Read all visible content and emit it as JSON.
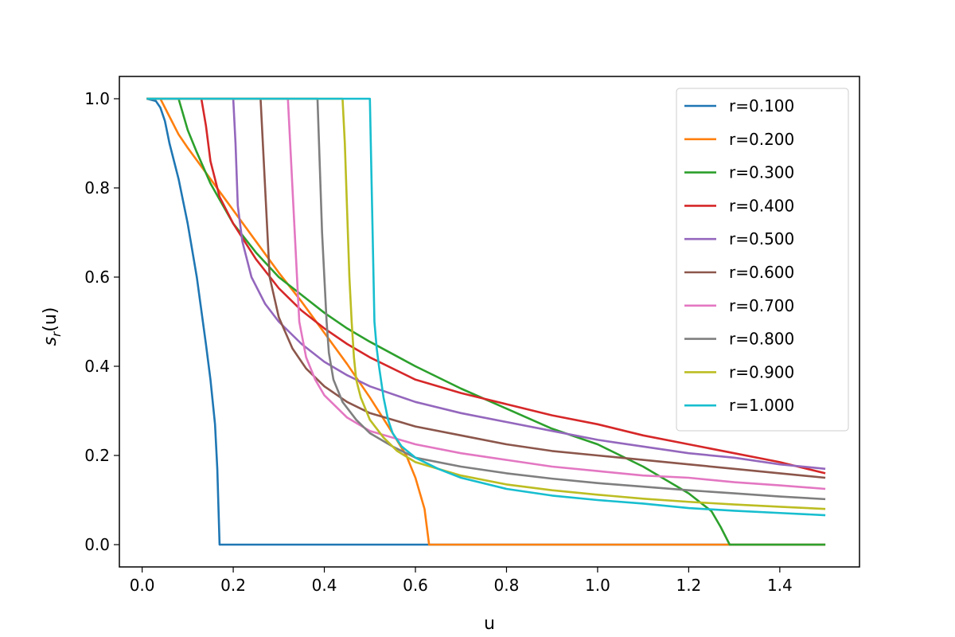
{
  "chart_data": {
    "type": "line",
    "xlabel": "u",
    "ylabel_base": "s",
    "ylabel_sub": "r",
    "ylabel_arg": "(u)",
    "xlim": [
      -0.05,
      1.575
    ],
    "ylim": [
      -0.05,
      1.05
    ],
    "xticks": [
      0.0,
      0.2,
      0.4,
      0.6,
      0.8,
      1.0,
      1.2,
      1.4
    ],
    "xtick_labels": [
      "0.0",
      "0.2",
      "0.4",
      "0.6",
      "0.8",
      "1.0",
      "1.2",
      "1.4"
    ],
    "yticks": [
      0.0,
      0.2,
      0.4,
      0.6,
      0.8,
      1.0
    ],
    "ytick_labels": [
      "0.0",
      "0.2",
      "0.4",
      "0.6",
      "0.8",
      "1.0"
    ],
    "grid": false,
    "legend_position": "top-right",
    "series": [
      {
        "name": "r=0.100",
        "color": "#1f77b4",
        "points": [
          [
            0.01,
            1.0
          ],
          [
            0.03,
            0.995
          ],
          [
            0.04,
            0.98
          ],
          [
            0.05,
            0.95
          ],
          [
            0.06,
            0.9
          ],
          [
            0.08,
            0.82
          ],
          [
            0.1,
            0.72
          ],
          [
            0.12,
            0.6
          ],
          [
            0.14,
            0.45
          ],
          [
            0.15,
            0.37
          ],
          [
            0.16,
            0.27
          ],
          [
            0.165,
            0.17
          ],
          [
            0.17,
            0.0
          ],
          [
            1.5,
            0.0
          ]
        ]
      },
      {
        "name": "r=0.200",
        "color": "#ff7f0e",
        "points": [
          [
            0.01,
            1.0
          ],
          [
            0.04,
            1.0
          ],
          [
            0.06,
            0.96
          ],
          [
            0.08,
            0.92
          ],
          [
            0.1,
            0.89
          ],
          [
            0.15,
            0.82
          ],
          [
            0.2,
            0.75
          ],
          [
            0.25,
            0.68
          ],
          [
            0.3,
            0.61
          ],
          [
            0.35,
            0.545
          ],
          [
            0.4,
            0.475
          ],
          [
            0.45,
            0.405
          ],
          [
            0.5,
            0.33
          ],
          [
            0.55,
            0.25
          ],
          [
            0.58,
            0.2
          ],
          [
            0.6,
            0.15
          ],
          [
            0.62,
            0.08
          ],
          [
            0.63,
            0.0
          ],
          [
            1.5,
            0.0
          ]
        ]
      },
      {
        "name": "r=0.300",
        "color": "#2ca02c",
        "points": [
          [
            0.01,
            1.0
          ],
          [
            0.08,
            1.0
          ],
          [
            0.1,
            0.93
          ],
          [
            0.12,
            0.88
          ],
          [
            0.15,
            0.81
          ],
          [
            0.2,
            0.72
          ],
          [
            0.25,
            0.655
          ],
          [
            0.3,
            0.6
          ],
          [
            0.35,
            0.56
          ],
          [
            0.4,
            0.52
          ],
          [
            0.45,
            0.485
          ],
          [
            0.5,
            0.455
          ],
          [
            0.6,
            0.4
          ],
          [
            0.7,
            0.35
          ],
          [
            0.8,
            0.305
          ],
          [
            0.9,
            0.26
          ],
          [
            1.0,
            0.225
          ],
          [
            1.05,
            0.2
          ],
          [
            1.1,
            0.175
          ],
          [
            1.15,
            0.145
          ],
          [
            1.2,
            0.115
          ],
          [
            1.25,
            0.075
          ],
          [
            1.27,
            0.04
          ],
          [
            1.29,
            0.0
          ],
          [
            1.5,
            0.0
          ]
        ]
      },
      {
        "name": "r=0.400",
        "color": "#d62728",
        "points": [
          [
            0.01,
            1.0
          ],
          [
            0.13,
            1.0
          ],
          [
            0.14,
            0.94
          ],
          [
            0.15,
            0.86
          ],
          [
            0.17,
            0.78
          ],
          [
            0.2,
            0.72
          ],
          [
            0.25,
            0.64
          ],
          [
            0.3,
            0.575
          ],
          [
            0.35,
            0.525
          ],
          [
            0.4,
            0.485
          ],
          [
            0.45,
            0.45
          ],
          [
            0.5,
            0.42
          ],
          [
            0.6,
            0.37
          ],
          [
            0.7,
            0.34
          ],
          [
            0.8,
            0.315
          ],
          [
            0.9,
            0.29
          ],
          [
            1.0,
            0.27
          ],
          [
            1.1,
            0.245
          ],
          [
            1.2,
            0.225
          ],
          [
            1.3,
            0.205
          ],
          [
            1.4,
            0.185
          ],
          [
            1.5,
            0.16
          ]
        ]
      },
      {
        "name": "r=0.500",
        "color": "#9467bd",
        "points": [
          [
            0.01,
            1.0
          ],
          [
            0.2,
            1.0
          ],
          [
            0.205,
            0.9
          ],
          [
            0.21,
            0.76
          ],
          [
            0.22,
            0.68
          ],
          [
            0.24,
            0.6
          ],
          [
            0.27,
            0.54
          ],
          [
            0.3,
            0.5
          ],
          [
            0.35,
            0.45
          ],
          [
            0.4,
            0.41
          ],
          [
            0.45,
            0.38
          ],
          [
            0.5,
            0.355
          ],
          [
            0.6,
            0.32
          ],
          [
            0.7,
            0.295
          ],
          [
            0.8,
            0.275
          ],
          [
            0.9,
            0.255
          ],
          [
            1.0,
            0.235
          ],
          [
            1.1,
            0.22
          ],
          [
            1.2,
            0.205
          ],
          [
            1.3,
            0.195
          ],
          [
            1.4,
            0.18
          ],
          [
            1.5,
            0.17
          ]
        ]
      },
      {
        "name": "r=0.600",
        "color": "#8c564b",
        "points": [
          [
            0.01,
            1.0
          ],
          [
            0.26,
            1.0
          ],
          [
            0.265,
            0.9
          ],
          [
            0.27,
            0.8
          ],
          [
            0.275,
            0.7
          ],
          [
            0.28,
            0.6
          ],
          [
            0.3,
            0.51
          ],
          [
            0.33,
            0.44
          ],
          [
            0.36,
            0.395
          ],
          [
            0.4,
            0.355
          ],
          [
            0.45,
            0.32
          ],
          [
            0.5,
            0.295
          ],
          [
            0.6,
            0.265
          ],
          [
            0.7,
            0.245
          ],
          [
            0.8,
            0.225
          ],
          [
            0.9,
            0.21
          ],
          [
            1.0,
            0.2
          ],
          [
            1.1,
            0.19
          ],
          [
            1.2,
            0.18
          ],
          [
            1.3,
            0.17
          ],
          [
            1.4,
            0.16
          ],
          [
            1.5,
            0.15
          ]
        ]
      },
      {
        "name": "r=0.700",
        "color": "#e377c2",
        "points": [
          [
            0.01,
            1.0
          ],
          [
            0.32,
            1.0
          ],
          [
            0.325,
            0.9
          ],
          [
            0.33,
            0.8
          ],
          [
            0.335,
            0.7
          ],
          [
            0.34,
            0.6
          ],
          [
            0.345,
            0.5
          ],
          [
            0.36,
            0.42
          ],
          [
            0.38,
            0.37
          ],
          [
            0.4,
            0.335
          ],
          [
            0.45,
            0.285
          ],
          [
            0.5,
            0.255
          ],
          [
            0.6,
            0.225
          ],
          [
            0.7,
            0.205
          ],
          [
            0.8,
            0.19
          ],
          [
            0.9,
            0.175
          ],
          [
            1.0,
            0.165
          ],
          [
            1.1,
            0.155
          ],
          [
            1.2,
            0.15
          ],
          [
            1.3,
            0.14
          ],
          [
            1.4,
            0.133
          ],
          [
            1.5,
            0.125
          ]
        ]
      },
      {
        "name": "r=0.800",
        "color": "#7f7f7f",
        "points": [
          [
            0.01,
            1.0
          ],
          [
            0.385,
            1.0
          ],
          [
            0.39,
            0.85
          ],
          [
            0.395,
            0.7
          ],
          [
            0.4,
            0.6
          ],
          [
            0.405,
            0.5
          ],
          [
            0.41,
            0.43
          ],
          [
            0.42,
            0.37
          ],
          [
            0.44,
            0.32
          ],
          [
            0.47,
            0.28
          ],
          [
            0.5,
            0.25
          ],
          [
            0.55,
            0.22
          ],
          [
            0.6,
            0.195
          ],
          [
            0.7,
            0.175
          ],
          [
            0.8,
            0.16
          ],
          [
            0.9,
            0.148
          ],
          [
            1.0,
            0.138
          ],
          [
            1.1,
            0.13
          ],
          [
            1.2,
            0.122
          ],
          [
            1.3,
            0.115
          ],
          [
            1.4,
            0.108
          ],
          [
            1.5,
            0.102
          ]
        ]
      },
      {
        "name": "r=0.900",
        "color": "#bcbd22",
        "points": [
          [
            0.01,
            1.0
          ],
          [
            0.44,
            1.0
          ],
          [
            0.445,
            0.9
          ],
          [
            0.45,
            0.75
          ],
          [
            0.455,
            0.6
          ],
          [
            0.46,
            0.5
          ],
          [
            0.465,
            0.42
          ],
          [
            0.47,
            0.37
          ],
          [
            0.48,
            0.33
          ],
          [
            0.5,
            0.28
          ],
          [
            0.53,
            0.24
          ],
          [
            0.56,
            0.21
          ],
          [
            0.6,
            0.185
          ],
          [
            0.7,
            0.155
          ],
          [
            0.8,
            0.135
          ],
          [
            0.9,
            0.122
          ],
          [
            1.0,
            0.112
          ],
          [
            1.1,
            0.103
          ],
          [
            1.2,
            0.096
          ],
          [
            1.3,
            0.09
          ],
          [
            1.4,
            0.085
          ],
          [
            1.5,
            0.08
          ]
        ]
      },
      {
        "name": "r=1.000",
        "color": "#17becf",
        "points": [
          [
            0.01,
            1.0
          ],
          [
            0.5,
            1.0
          ],
          [
            0.505,
            0.75
          ],
          [
            0.51,
            0.5
          ],
          [
            0.515,
            0.44
          ],
          [
            0.52,
            0.4
          ],
          [
            0.53,
            0.33
          ],
          [
            0.54,
            0.28
          ],
          [
            0.55,
            0.25
          ],
          [
            0.57,
            0.22
          ],
          [
            0.6,
            0.195
          ],
          [
            0.65,
            0.17
          ],
          [
            0.7,
            0.15
          ],
          [
            0.8,
            0.125
          ],
          [
            0.9,
            0.11
          ],
          [
            1.0,
            0.1
          ],
          [
            1.1,
            0.092
          ],
          [
            1.2,
            0.082
          ],
          [
            1.3,
            0.076
          ],
          [
            1.4,
            0.071
          ],
          [
            1.5,
            0.066
          ]
        ]
      }
    ]
  }
}
